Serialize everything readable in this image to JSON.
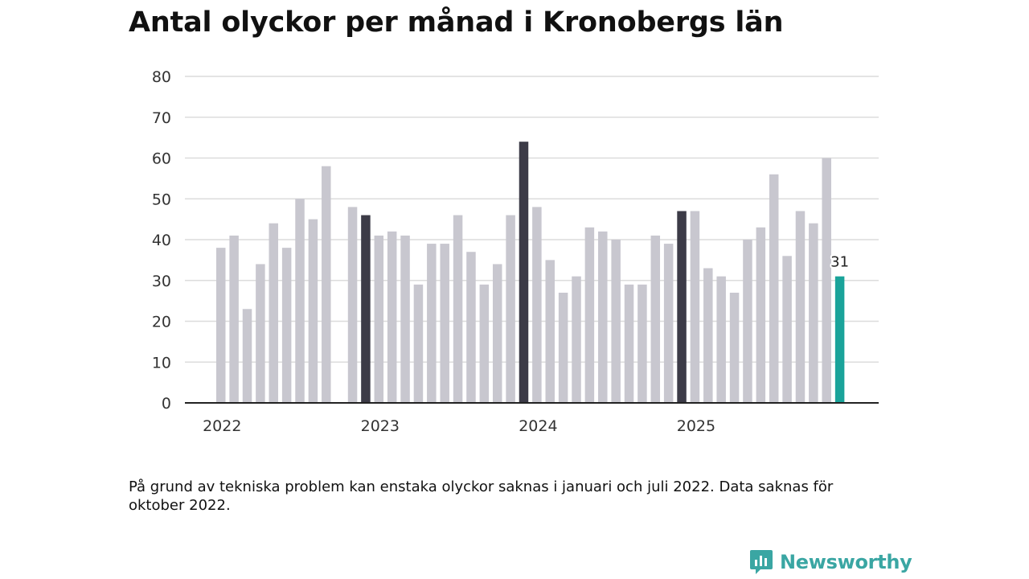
{
  "title": "Antal olyckor per månad i Kronobergs län",
  "note": "På grund av tekniska problem kan enstaka olyckor saknas i januari och juli 2022. Data saknas för oktober 2022.",
  "brand": {
    "name": "Newsworthy",
    "icon": "newsworthy-logo-icon",
    "color": "#3aa6a3"
  },
  "colors": {
    "default_bar": "#c8c7cf",
    "december_bar": "#3c3b47",
    "latest_bar": "#1aa39a",
    "gridline": "#dcdcdc",
    "axis": "#222222"
  },
  "chart_data": {
    "type": "bar",
    "title": "Antal olyckor per månad i Kronobergs län",
    "xlabel": "",
    "ylabel": "",
    "ylim": [
      0,
      80
    ],
    "yticks": [
      0,
      10,
      20,
      30,
      40,
      50,
      60,
      70,
      80
    ],
    "x_tick_labels": [
      "2022",
      "2023",
      "2024",
      "2025"
    ],
    "categories": [
      "2022-01",
      "2022-02",
      "2022-03",
      "2022-04",
      "2022-05",
      "2022-06",
      "2022-07",
      "2022-08",
      "2022-09",
      "2022-10",
      "2022-11",
      "2022-12",
      "2023-01",
      "2023-02",
      "2023-03",
      "2023-04",
      "2023-05",
      "2023-06",
      "2023-07",
      "2023-08",
      "2023-09",
      "2023-10",
      "2023-11",
      "2023-12",
      "2024-01",
      "2024-02",
      "2024-03",
      "2024-04",
      "2024-05",
      "2024-06",
      "2024-07",
      "2024-08",
      "2024-09",
      "2024-10",
      "2024-11",
      "2024-12",
      "2025-01",
      "2025-02",
      "2025-03",
      "2025-04",
      "2025-05",
      "2025-06",
      "2025-07",
      "2025-08",
      "2025-09",
      "2025-10",
      "2025-11",
      "2025-12"
    ],
    "values": [
      38,
      41,
      23,
      34,
      44,
      38,
      50,
      45,
      58,
      null,
      48,
      46,
      41,
      42,
      41,
      29,
      39,
      39,
      46,
      37,
      29,
      34,
      46,
      64,
      48,
      35,
      27,
      31,
      43,
      42,
      40,
      29,
      29,
      41,
      39,
      47,
      47,
      33,
      31,
      27,
      40,
      43,
      56,
      36,
      47,
      44,
      60,
      31
    ],
    "highlight": {
      "december": [
        "2022-12",
        "2023-12",
        "2024-12"
      ],
      "latest": "2025-12"
    },
    "annotations": [
      {
        "category": "2025-12",
        "text": "31"
      }
    ],
    "grid": true
  }
}
